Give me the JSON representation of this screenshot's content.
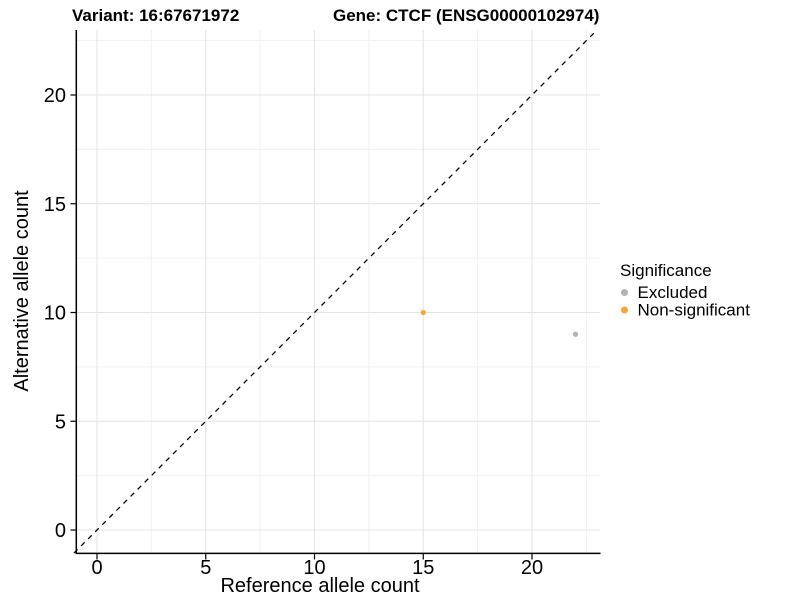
{
  "chart_data": {
    "type": "scatter",
    "title_left": "Variant: 16:67671972",
    "title_right": "Gene: CTCF (ENSG00000102974)",
    "xlabel": "Reference allele count",
    "ylabel": "Alternative allele count",
    "xticks": [
      "0",
      "5",
      "10",
      "15",
      "20"
    ],
    "yticks": [
      "0",
      "5",
      "10",
      "15",
      "20"
    ],
    "xlim": [
      -1.0,
      23.2
    ],
    "ylim": [
      -1.1,
      23.0
    ],
    "grid": "major and minor gridlines, light gray on white; black axis lines left and bottom",
    "reference_line": {
      "type": "identity y=x",
      "style": "dashed",
      "color": "#000000"
    },
    "legend": {
      "title": "Significance",
      "position": "right-middle",
      "entries": [
        {
          "label": "Excluded",
          "color": "#B3B3B3"
        },
        {
          "label": "Non-significant",
          "color": "#F9A43B"
        }
      ]
    },
    "series": [
      {
        "name": "Excluded",
        "color": "#B3B3B3",
        "points": [
          {
            "x": 22,
            "y": 9
          }
        ]
      },
      {
        "name": "Non-significant",
        "color": "#F9A43B",
        "points": [
          {
            "x": 15,
            "y": 10
          }
        ]
      }
    ]
  }
}
